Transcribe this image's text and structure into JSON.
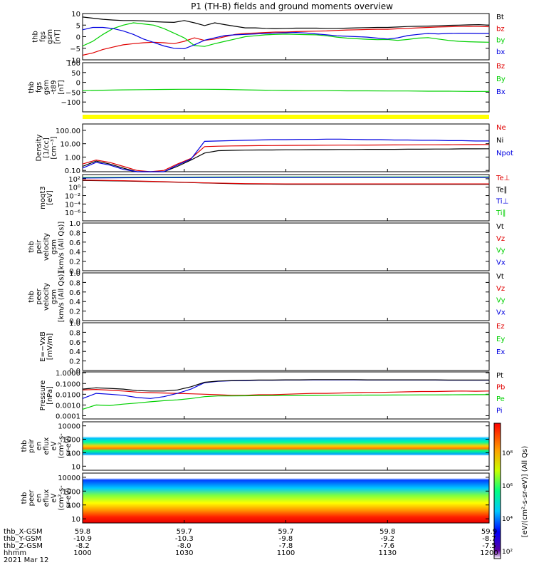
{
  "title": "P1 (TH-B) fields and ground moments overview",
  "date_label": "2021 Mar 12",
  "colors": {
    "black": "#000000",
    "red": "#e00000",
    "green": "#00d000",
    "blue": "#0000e0",
    "yellow": "#ffff00"
  },
  "time_axis": {
    "row_labels": [
      "thb_X-GSM",
      "thb_Y-GSM",
      "thb_Z-GSM",
      "hhmm"
    ],
    "ticks": [
      {
        "hhmm": "1000",
        "x": "59.8",
        "y": "-10.9",
        "z": "-8.2"
      },
      {
        "hhmm": "1030",
        "x": "59.7",
        "y": "-10.3",
        "z": "-8.0"
      },
      {
        "hhmm": "1100",
        "x": "59.7",
        "y": "-9.8",
        "z": "-7.8"
      },
      {
        "hhmm": "1130",
        "x": "59.8",
        "y": "-9.2",
        "z": "-7.6"
      },
      {
        "hhmm": "1200",
        "x": "59.9",
        "y": "-8.7",
        "z": "-7.5"
      }
    ]
  },
  "colorbar": {
    "tick_labels": [
      "10²",
      "10⁴",
      "10⁶",
      "10⁸"
    ],
    "title": "[eV/(cm²-s-sr-eV)] (All Qs)"
  },
  "chart_data": [
    {
      "id": "fgs",
      "type": "line",
      "ylabel_lines": [
        "thb",
        "fgs",
        "gsm",
        "[nT]"
      ],
      "ylim": [
        -10,
        10
      ],
      "ticks": [
        -10,
        -5,
        0,
        5,
        10
      ],
      "tick_labels": [
        "−10",
        "−5",
        "0",
        "5",
        "10"
      ],
      "legend": [
        {
          "name": "Bt",
          "color": "#000000"
        },
        {
          "name": "bz",
          "color": "#e00000"
        },
        {
          "name": "by",
          "color": "#00d000"
        },
        {
          "name": "bx",
          "color": "#0000e0"
        }
      ],
      "series": [
        {
          "name": "Bt",
          "color": "#000000",
          "values": [
            8.5,
            8.0,
            7.5,
            7.2,
            7.0,
            7.0,
            6.8,
            6.5,
            6.3,
            6.2,
            7.0,
            6.0,
            4.8,
            6.0,
            5.2,
            4.5,
            3.8,
            3.8,
            3.6,
            3.5,
            3.6,
            3.7,
            3.7,
            3.7,
            3.6,
            3.6,
            3.7,
            3.8,
            3.9,
            4.0,
            4.0,
            4.2,
            4.4,
            4.5,
            4.6,
            4.7,
            4.9,
            5.0,
            5.1,
            5.2,
            5.0
          ]
        },
        {
          "name": "bz",
          "color": "#e00000",
          "values": [
            -8.0,
            -7.0,
            -5.5,
            -4.5,
            -3.5,
            -3.0,
            -2.6,
            -2.4,
            -2.6,
            -3.0,
            -2.0,
            -0.5,
            -1.6,
            -1.0,
            0.0,
            1.0,
            1.4,
            1.6,
            1.8,
            2.0,
            2.0,
            2.2,
            2.3,
            2.4,
            2.5,
            2.7,
            2.9,
            3.0,
            3.1,
            3.2,
            3.2,
            3.4,
            3.6,
            3.8,
            4.0,
            4.2,
            4.3,
            4.4,
            4.5,
            4.4,
            4.3
          ]
        },
        {
          "name": "by",
          "color": "#00d000",
          "values": [
            -4.0,
            -2.0,
            1.0,
            3.5,
            5.0,
            6.0,
            5.5,
            5.0,
            3.5,
            1.5,
            -0.5,
            -3.8,
            -4.2,
            -3.0,
            -2.0,
            -1.0,
            0.0,
            0.4,
            0.8,
            1.0,
            1.1,
            1.0,
            0.9,
            0.8,
            0.4,
            -0.2,
            -0.6,
            -0.9,
            -1.1,
            -1.3,
            -1.2,
            -1.6,
            -1.2,
            -0.6,
            -0.4,
            -1.0,
            -1.6,
            -2.0,
            -2.2,
            -2.3,
            -2.4
          ]
        },
        {
          "name": "bx",
          "color": "#0000e0",
          "values": [
            3.0,
            4.0,
            4.0,
            3.5,
            2.5,
            1.0,
            -1.0,
            -2.5,
            -4.0,
            -5.0,
            -5.2,
            -3.5,
            -1.5,
            -0.5,
            0.5,
            0.8,
            1.0,
            1.2,
            1.4,
            1.6,
            1.7,
            1.8,
            1.6,
            1.2,
            0.8,
            0.4,
            0.2,
            0.0,
            -0.2,
            -0.6,
            -1.0,
            -0.5,
            0.5,
            1.0,
            1.4,
            1.2,
            1.4,
            1.5,
            1.5,
            1.4,
            1.4
          ]
        }
      ]
    },
    {
      "id": "fgs_gsm",
      "type": "line",
      "ylabel_lines": [
        "thb",
        "fgs",
        "gsm",
        "-t89",
        "[nT]"
      ],
      "ylim": [
        -150,
        100
      ],
      "ticks": [
        -100,
        -50,
        0,
        50,
        100
      ],
      "tick_labels": [
        "−100",
        "−50",
        "0",
        "50",
        "100"
      ],
      "legend": [
        {
          "name": "Bz",
          "color": "#e00000"
        },
        {
          "name": "By",
          "color": "#00d000"
        },
        {
          "name": "Bx",
          "color": "#0000e0"
        }
      ],
      "series": [
        {
          "name": "By",
          "color": "#00d000",
          "values": [
            -42,
            -40,
            -38,
            -37,
            -36,
            -35,
            -35,
            -36,
            -38,
            -40,
            -41,
            -42,
            -42,
            -43,
            -43,
            -44,
            -44,
            -45,
            -45,
            -46,
            -46
          ]
        }
      ]
    },
    {
      "id": "density",
      "type": "line",
      "yscale": "log",
      "ylabel_lines": [
        "Density",
        "[1/cc]",
        "[cm⁻³]"
      ],
      "ylim": [
        0.08,
        300
      ],
      "ticks": [
        0.1,
        1,
        10,
        100
      ],
      "tick_labels": [
        "0.10",
        "1.00",
        "10.00",
        "100.00"
      ],
      "legend": [
        {
          "name": "Ne",
          "color": "#e00000"
        },
        {
          "name": "Ni",
          "color": "#000000"
        },
        {
          "name": "Npot",
          "color": "#0000e0"
        }
      ],
      "series": [
        {
          "name": "Ne",
          "color": "#e00000",
          "values": [
            0.3,
            0.6,
            0.4,
            0.2,
            0.1,
            0.06,
            0.1,
            0.3,
            0.8,
            6,
            6.5,
            6.8,
            7,
            7.2,
            7.3,
            7.4,
            7.5,
            7.6,
            7.7,
            7.8,
            7.8,
            7.9,
            8,
            8.1,
            8.2,
            8.3,
            8.3,
            8.4,
            8.5,
            8.6,
            8.7
          ]
        },
        {
          "name": "Ni",
          "color": "#000000",
          "values": [
            0.2,
            0.5,
            0.3,
            0.15,
            0.08,
            0.04,
            0.07,
            0.2,
            0.6,
            2,
            3,
            3.2,
            3.3,
            3.4,
            3.4,
            3.5,
            3.5,
            3.6,
            3.6,
            3.7,
            3.7,
            3.8,
            3.8,
            3.8,
            3.9,
            3.9,
            4,
            4,
            4.1,
            4.1,
            4.2
          ]
        },
        {
          "name": "Npot",
          "color": "#0000e0",
          "values": [
            0.15,
            0.4,
            0.25,
            0.12,
            0.07,
            0.05,
            0.08,
            0.25,
            0.7,
            15,
            16,
            17,
            18,
            19,
            20,
            20,
            21,
            21,
            22,
            22,
            21,
            20,
            20,
            19,
            19,
            18,
            18,
            17,
            17,
            16,
            16
          ]
        }
      ]
    },
    {
      "id": "moqt3",
      "type": "line",
      "yscale": "log",
      "ylabel_lines": [
        "moqt3",
        "[eV]"
      ],
      "ylim": [
        1e-08,
        1000
      ],
      "ticks": [
        1e-06,
        0.0001,
        0.01,
        1,
        100
      ],
      "tick_labels": [
        "10⁻⁶",
        "10⁻⁴",
        "10⁻²",
        "10⁰",
        "10²"
      ],
      "legend": [
        {
          "name": "Te⊥",
          "color": "#e00000"
        },
        {
          "name": "Te∥",
          "color": "#000000"
        },
        {
          "name": "Ti⊥",
          "color": "#0000e0"
        },
        {
          "name": "Ti∥",
          "color": "#00d000"
        }
      ],
      "series": [
        {
          "name": "Ti∥",
          "color": "#00d000",
          "values": [
            200,
            220,
            250,
            260,
            270,
            280,
            280,
            280,
            280,
            280,
            280
          ]
        },
        {
          "name": "Ti⊥",
          "color": "#0000e0",
          "values": [
            150,
            170,
            190,
            200,
            210,
            210,
            210,
            210,
            210,
            210,
            210
          ]
        },
        {
          "name": "Te∥",
          "color": "#000000",
          "values": [
            40,
            30,
            18,
            10,
            6,
            5,
            5,
            5,
            5,
            5,
            5
          ]
        },
        {
          "name": "Te⊥",
          "color": "#e00000",
          "values": [
            50,
            35,
            20,
            11,
            7,
            6,
            6,
            6,
            6,
            6,
            6
          ]
        }
      ]
    },
    {
      "id": "peir_velocity",
      "type": "line",
      "ylabel_lines": [
        "thb",
        "peir",
        "velocity",
        "gsm",
        "[km/s (All Qs)]"
      ],
      "ylim": [
        0,
        1
      ],
      "ticks": [
        0,
        0.2,
        0.4,
        0.6,
        0.8,
        1
      ],
      "tick_labels": [
        "0.0",
        "0.2",
        "0.4",
        "0.6",
        "0.8",
        "1.0"
      ],
      "legend": [
        {
          "name": "Vt",
          "color": "#000000"
        },
        {
          "name": "Vz",
          "color": "#e00000"
        },
        {
          "name": "Vy",
          "color": "#00d000"
        },
        {
          "name": "Vx",
          "color": "#0000e0"
        }
      ],
      "series": []
    },
    {
      "id": "peer_velocity",
      "type": "line",
      "ylabel_lines": [
        "thb",
        "peer",
        "velocity",
        "gsm",
        "[km/s (All Qs)]"
      ],
      "ylim": [
        0,
        1
      ],
      "ticks": [
        0,
        0.2,
        0.4,
        0.6,
        0.8,
        1
      ],
      "tick_labels": [
        "0.0",
        "0.2",
        "0.4",
        "0.6",
        "0.8",
        "1.0"
      ],
      "legend": [
        {
          "name": "Vt",
          "color": "#000000"
        },
        {
          "name": "Vz",
          "color": "#e00000"
        },
        {
          "name": "Vy",
          "color": "#00d000"
        },
        {
          "name": "Vx",
          "color": "#0000e0"
        }
      ],
      "series": []
    },
    {
      "id": "e_vxb",
      "type": "line",
      "ylabel_lines": [
        "E=−VxB",
        "[mV/m]"
      ],
      "ylim": [
        0,
        1
      ],
      "ticks": [
        0,
        0.2,
        0.4,
        0.6,
        0.8,
        1
      ],
      "tick_labels": [
        "0.0",
        "0.2",
        "0.4",
        "0.6",
        "0.8",
        "1.0"
      ],
      "legend": [
        {
          "name": "Ez",
          "color": "#e00000"
        },
        {
          "name": "Ey",
          "color": "#00d000"
        },
        {
          "name": "Ex",
          "color": "#0000e0"
        }
      ],
      "series": []
    },
    {
      "id": "pressure",
      "type": "line",
      "yscale": "log",
      "ylabel_lines": [
        "Pressure",
        "[nPa]"
      ],
      "ylim": [
        5e-05,
        1.2
      ],
      "ticks": [
        0.0001,
        0.001,
        0.01,
        0.1,
        1
      ],
      "tick_labels": [
        "0.0001",
        "0.0010",
        "0.0100",
        "0.1000",
        "1.0000"
      ],
      "legend": [
        {
          "name": "Pt",
          "color": "#000000"
        },
        {
          "name": "Pb",
          "color": "#e00000"
        },
        {
          "name": "Pe",
          "color": "#00d000"
        },
        {
          "name": "Pi",
          "color": "#0000e0"
        }
      ],
      "series": [
        {
          "name": "Pb",
          "color": "#e00000",
          "values": [
            0.025,
            0.028,
            0.024,
            0.02,
            0.016,
            0.014,
            0.013,
            0.012,
            0.011,
            0.01,
            0.009,
            0.008,
            0.008,
            0.009,
            0.009,
            0.01,
            0.011,
            0.012,
            0.012,
            0.013,
            0.014,
            0.015,
            0.015,
            0.016,
            0.017,
            0.018,
            0.018,
            0.019,
            0.02,
            0.019,
            0.02
          ]
        },
        {
          "name": "Pe",
          "color": "#00d000",
          "values": [
            0.0004,
            0.001,
            0.0009,
            0.0012,
            0.0015,
            0.002,
            0.0025,
            0.003,
            0.004,
            0.006,
            0.007,
            0.007,
            0.0072,
            0.0074,
            0.0075,
            0.0076,
            0.0077,
            0.0078,
            0.008,
            0.0081,
            0.0082,
            0.0083,
            0.0084,
            0.0085,
            0.0086,
            0.0087,
            0.0088,
            0.0089,
            0.009,
            0.0091,
            0.0092
          ]
        },
        {
          "name": "Pi",
          "color": "#0000e0",
          "values": [
            0.004,
            0.012,
            0.01,
            0.008,
            0.005,
            0.004,
            0.006,
            0.012,
            0.03,
            0.12,
            0.16,
            0.18,
            0.19,
            0.2,
            0.2,
            0.21,
            0.21,
            0.22,
            0.22,
            0.22,
            0.22,
            0.21,
            0.21,
            0.21,
            0.21,
            0.21,
            0.21,
            0.2,
            0.2,
            0.2,
            0.2
          ]
        },
        {
          "name": "Pt",
          "color": "#000000",
          "values": [
            0.03,
            0.04,
            0.035,
            0.03,
            0.022,
            0.02,
            0.02,
            0.025,
            0.05,
            0.13,
            0.17,
            0.19,
            0.2,
            0.21,
            0.21,
            0.22,
            0.22,
            0.23,
            0.23,
            0.23,
            0.23,
            0.22,
            0.22,
            0.22,
            0.22,
            0.22,
            0.22,
            0.21,
            0.21,
            0.21,
            0.21
          ]
        }
      ]
    },
    {
      "id": "peir_eflux",
      "type": "heatmap",
      "yscale": "log",
      "ylabel_lines": [
        "thb",
        "peir",
        "en",
        "eflux",
        "eV",
        "(cm²-s-",
        "sr-eV)"
      ],
      "ylim": [
        5,
        20000
      ],
      "ticks": [
        10,
        100,
        1000,
        10000
      ],
      "tick_labels": [
        "10",
        "100",
        "1000",
        "10000"
      ]
    },
    {
      "id": "peer_eflux",
      "type": "heatmap",
      "yscale": "log",
      "ylabel_lines": [
        "thb",
        "peer",
        "en",
        "eflux",
        "eV",
        "(cm²-s-",
        "sr-eV)"
      ],
      "ylim": [
        5,
        20000
      ],
      "ticks": [
        10,
        100,
        1000,
        10000
      ],
      "tick_labels": [
        "10",
        "100",
        "1000",
        "10000"
      ]
    }
  ]
}
